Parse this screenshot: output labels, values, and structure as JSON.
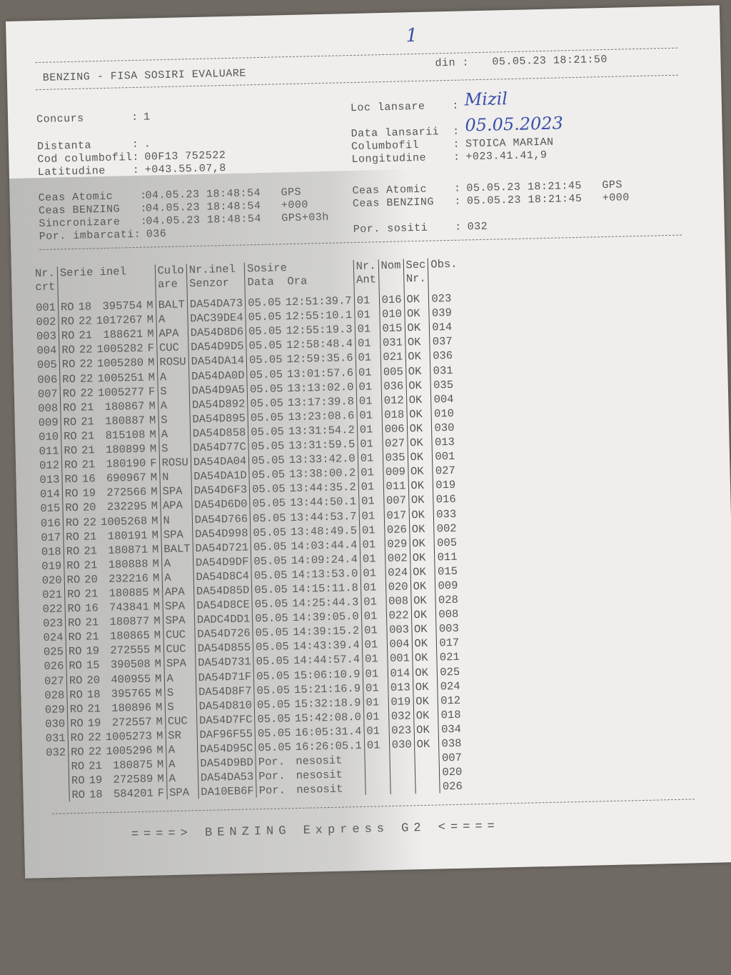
{
  "page_number_handwritten": "1",
  "header": {
    "title": "BENZING - FISA SOSIRI EVALUARE",
    "din_label": "din :",
    "din_value": "05.05.23 18:21:50"
  },
  "info_left": [
    {
      "label": "Concurs       :",
      "value": "1"
    },
    {
      "label": "Distanta      :",
      "value": "."
    },
    {
      "label": "Cod columbofil:",
      "value": "00F13 752522"
    },
    {
      "label": "Latitudine    :",
      "value": "+043.55.07,8"
    }
  ],
  "info_right": [
    {
      "label": "Loc lansare    :",
      "value": "Mizil",
      "handwritten": true
    },
    {
      "label": "Data lansarii  :",
      "value": "05.05.2023",
      "handwritten": true
    },
    {
      "label": "Columbofil     :",
      "value": "STOICA MARIAN"
    },
    {
      "label": "Longitudine    :",
      "value": "+023.41.41,9"
    }
  ],
  "clocks_left": [
    {
      "label": "Ceas Atomic    :",
      "value": "04.05.23 18:48:54",
      "suffix": "GPS"
    },
    {
      "label": "Ceas BENZING   :",
      "value": "04.05.23 18:48:54",
      "suffix": "+000"
    },
    {
      "label": "Sincronizare   :",
      "value": "04.05.23 18:48:54",
      "suffix": "GPS+03h"
    },
    {
      "label": "Por. imbarcati:",
      "value": "036",
      "suffix": ""
    }
  ],
  "clocks_right": [
    {
      "label": "Ceas Atomic    :",
      "value": "05.05.23 18:21:45",
      "suffix": "GPS"
    },
    {
      "label": "Ceas BENZING   :",
      "value": "05.05.23 18:21:45",
      "suffix": "+000"
    },
    {
      "label": "Por. sositi    :",
      "value": "032",
      "suffix": ""
    }
  ],
  "columns": {
    "nr": "Nr.\ncrt",
    "serie": "Serie inel",
    "culoare": "Culo\nare",
    "senzor": "Nr.inel\nSenzor",
    "sosire": "Sosire\nData  Ora",
    "ant": "Nr.\nAnt",
    "nom": "Nom",
    "sec": "Sec\nNr.",
    "obs": "Obs."
  },
  "rows": [
    [
      "001",
      "RO",
      "18",
      "395754",
      "M",
      "BALT",
      "DA54DA73",
      "05.05",
      "12:51:39.7",
      "01",
      "016",
      "OK",
      "023"
    ],
    [
      "002",
      "RO",
      "22",
      "1017267",
      "M",
      "A",
      "DAC39DE4",
      "05.05",
      "12:55:10.1",
      "01",
      "010",
      "OK",
      "039"
    ],
    [
      "003",
      "RO",
      "21",
      "188621",
      "M",
      "APA",
      "DA54D8D6",
      "05.05",
      "12:55:19.3",
      "01",
      "015",
      "OK",
      "014"
    ],
    [
      "004",
      "RO",
      "22",
      "1005282",
      "F",
      "CUC",
      "DA54D9D5",
      "05.05",
      "12:58:48.4",
      "01",
      "031",
      "OK",
      "037"
    ],
    [
      "005",
      "RO",
      "22",
      "1005280",
      "M",
      "ROSU",
      "DA54DA14",
      "05.05",
      "12:59:35.6",
      "01",
      "021",
      "OK",
      "036"
    ],
    [
      "006",
      "RO",
      "22",
      "1005251",
      "M",
      "A",
      "DA54DA0D",
      "05.05",
      "13:01:57.6",
      "01",
      "005",
      "OK",
      "031"
    ],
    [
      "007",
      "RO",
      "22",
      "1005277",
      "F",
      "S",
      "DA54D9A5",
      "05.05",
      "13:13:02.0",
      "01",
      "036",
      "OK",
      "035"
    ],
    [
      "008",
      "RO",
      "21",
      "180867",
      "M",
      "A",
      "DA54D892",
      "05.05",
      "13:17:39.8",
      "01",
      "012",
      "OK",
      "004"
    ],
    [
      "009",
      "RO",
      "21",
      "180887",
      "M",
      "S",
      "DA54D895",
      "05.05",
      "13:23:08.6",
      "01",
      "018",
      "OK",
      "010"
    ],
    [
      "010",
      "RO",
      "21",
      "815108",
      "M",
      "A",
      "DA54D858",
      "05.05",
      "13:31:54.2",
      "01",
      "006",
      "OK",
      "030"
    ],
    [
      "011",
      "RO",
      "21",
      "180899",
      "M",
      "S",
      "DA54D77C",
      "05.05",
      "13:31:59.5",
      "01",
      "027",
      "OK",
      "013"
    ],
    [
      "012",
      "RO",
      "21",
      "180190",
      "F",
      "ROSU",
      "DA54DA04",
      "05.05",
      "13:33:42.0",
      "01",
      "035",
      "OK",
      "001"
    ],
    [
      "013",
      "RO",
      "16",
      "690967",
      "M",
      "N",
      "DA54DA1D",
      "05.05",
      "13:38:00.2",
      "01",
      "009",
      "OK",
      "027"
    ],
    [
      "014",
      "RO",
      "19",
      "272566",
      "M",
      "SPA",
      "DA54D6F3",
      "05.05",
      "13:44:35.2",
      "01",
      "011",
      "OK",
      "019"
    ],
    [
      "015",
      "RO",
      "20",
      "232295",
      "M",
      "APA",
      "DA54D6D0",
      "05.05",
      "13:44:50.1",
      "01",
      "007",
      "OK",
      "016"
    ],
    [
      "016",
      "RO",
      "22",
      "1005268",
      "M",
      "N",
      "DA54D766",
      "05.05",
      "13:44:53.7",
      "01",
      "017",
      "OK",
      "033"
    ],
    [
      "017",
      "RO",
      "21",
      "180191",
      "M",
      "SPA",
      "DA54D998",
      "05.05",
      "13:48:49.5",
      "01",
      "026",
      "OK",
      "002"
    ],
    [
      "018",
      "RO",
      "21",
      "180871",
      "M",
      "BALT",
      "DA54D721",
      "05.05",
      "14:03:44.4",
      "01",
      "029",
      "OK",
      "005"
    ],
    [
      "019",
      "RO",
      "21",
      "180888",
      "M",
      "A",
      "DA54D9DF",
      "05.05",
      "14:09:24.4",
      "01",
      "002",
      "OK",
      "011"
    ],
    [
      "020",
      "RO",
      "20",
      "232216",
      "M",
      "A",
      "DA54D8C4",
      "05.05",
      "14:13:53.0",
      "01",
      "024",
      "OK",
      "015"
    ],
    [
      "021",
      "RO",
      "21",
      "180885",
      "M",
      "APA",
      "DA54D85D",
      "05.05",
      "14:15:11.8",
      "01",
      "020",
      "OK",
      "009"
    ],
    [
      "022",
      "RO",
      "16",
      "743841",
      "M",
      "SPA",
      "DA54D8CE",
      "05.05",
      "14:25:44.3",
      "01",
      "008",
      "OK",
      "028"
    ],
    [
      "023",
      "RO",
      "21",
      "180877",
      "M",
      "SPA",
      "DADC4DD1",
      "05.05",
      "14:39:05.0",
      "01",
      "022",
      "OK",
      "008"
    ],
    [
      "024",
      "RO",
      "21",
      "180865",
      "M",
      "CUC",
      "DA54D726",
      "05.05",
      "14:39:15.2",
      "01",
      "003",
      "OK",
      "003"
    ],
    [
      "025",
      "RO",
      "19",
      "272555",
      "M",
      "CUC",
      "DA54D855",
      "05.05",
      "14:43:39.4",
      "01",
      "004",
      "OK",
      "017"
    ],
    [
      "026",
      "RO",
      "15",
      "390508",
      "M",
      "SPA",
      "DA54D731",
      "05.05",
      "14:44:57.4",
      "01",
      "001",
      "OK",
      "021"
    ],
    [
      "027",
      "RO",
      "20",
      "400955",
      "M",
      "A",
      "DA54D71F",
      "05.05",
      "15:06:10.9",
      "01",
      "014",
      "OK",
      "025"
    ],
    [
      "028",
      "RO",
      "18",
      "395765",
      "M",
      "S",
      "DA54D8F7",
      "05.05",
      "15:21:16.9",
      "01",
      "013",
      "OK",
      "024"
    ],
    [
      "029",
      "RO",
      "21",
      "180896",
      "M",
      "S",
      "DA54D810",
      "05.05",
      "15:32:18.9",
      "01",
      "019",
      "OK",
      "012"
    ],
    [
      "030",
      "RO",
      "19",
      "272557",
      "M",
      "CUC",
      "DA54D7FC",
      "05.05",
      "15:42:08.0",
      "01",
      "032",
      "OK",
      "018"
    ],
    [
      "031",
      "RO",
      "22",
      "1005273",
      "M",
      "SR",
      "DAF96F55",
      "05.05",
      "16:05:31.4",
      "01",
      "023",
      "OK",
      "034"
    ],
    [
      "032",
      "RO",
      "22",
      "1005296",
      "M",
      "A",
      "DA54D95C",
      "05.05",
      "16:26:05.1",
      "01",
      "030",
      "OK",
      "038"
    ],
    [
      "",
      "RO",
      "21",
      "180875",
      "M",
      "A",
      "DA54D9BD",
      "Por.",
      "nesosit",
      "",
      "",
      "",
      "007"
    ],
    [
      "",
      "RO",
      "19",
      "272589",
      "M",
      "A",
      "DA54DA53",
      "Por.",
      "nesosit",
      "",
      "",
      "",
      "020"
    ],
    [
      "",
      "RO",
      "18",
      "584201",
      "F",
      "SPA",
      "DA10EB6F",
      "Por.",
      "nesosit",
      "",
      "",
      "",
      "026"
    ]
  ],
  "footer": "====> BENZING Express G2 <===="
}
